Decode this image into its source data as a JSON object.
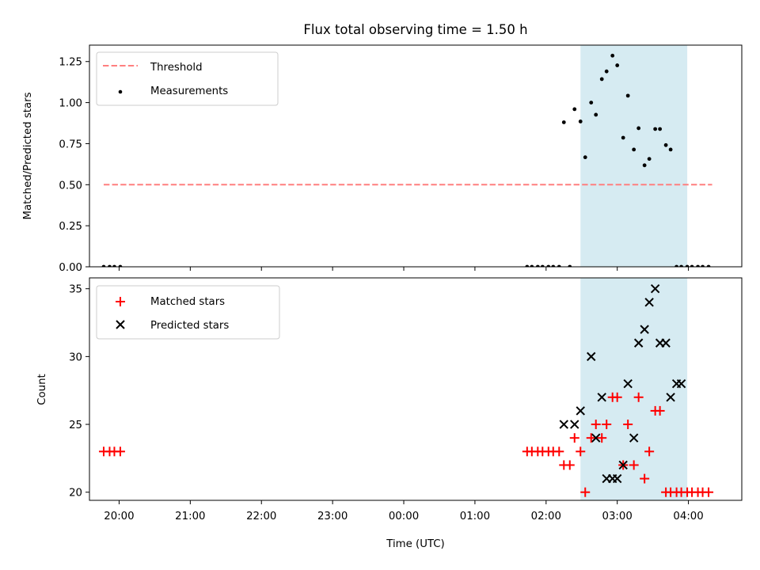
{
  "chart_data": [
    {
      "type": "scatter",
      "title": "Flux total observing time = 1.50 h",
      "xlabel": "",
      "ylabel": "Matched/Predicted stars",
      "ylim": [
        0,
        1.35
      ],
      "yticks": [
        "0.00",
        "0.25",
        "0.50",
        "0.75",
        "1.00",
        "1.25"
      ],
      "xlim": [
        "19:35",
        "04:45"
      ],
      "xticks": [
        "20:00",
        "21:00",
        "22:00",
        "23:00",
        "00:00",
        "01:00",
        "02:00",
        "03:00",
        "04:00"
      ],
      "shaded_span": {
        "start": "02:29",
        "end": "03:59",
        "color": "#add8e6"
      },
      "legend_position": "upper left",
      "series": [
        {
          "name": "Threshold",
          "kind": "dashed-line",
          "color": "#ff7f7f",
          "x": [
            "19:47",
            "04:20"
          ],
          "y": [
            0.5,
            0.5
          ]
        },
        {
          "name": "Measurements",
          "kind": "points",
          "color": "#000000",
          "x": [
            "19:47",
            "19:52",
            "19:56",
            "20:01",
            "01:44",
            "01:48",
            "01:53",
            "01:57",
            "02:02",
            "02:06",
            "02:11",
            "02:15",
            "02:20",
            "02:24",
            "02:29",
            "02:33",
            "02:38",
            "02:42",
            "02:47",
            "02:51",
            "02:56",
            "03:00",
            "03:05",
            "03:09",
            "03:14",
            "03:18",
            "03:23",
            "03:27",
            "03:32",
            "03:36",
            "03:41",
            "03:45",
            "03:50",
            "03:54",
            "03:59",
            "04:03",
            "04:08",
            "04:12",
            "04:17"
          ],
          "y": [
            0,
            0,
            0,
            0,
            0,
            0,
            0,
            0,
            0,
            0,
            0,
            0.88,
            0,
            0.96,
            0.885,
            0.667,
            1.0,
            0.926,
            1.143,
            1.19,
            1.286,
            1.227,
            0.786,
            1.042,
            0.714,
            0.844,
            0.618,
            0.657,
            0.839,
            0.839,
            0.741,
            0.714,
            0,
            0,
            0,
            0,
            0,
            0,
            0
          ]
        }
      ]
    },
    {
      "type": "scatter",
      "title": "",
      "xlabel": "Time (UTC)",
      "ylabel": "Count",
      "ylim": [
        19.4,
        35.8
      ],
      "yticks": [
        "20",
        "25",
        "30",
        "35"
      ],
      "xlim": [
        "19:35",
        "04:45"
      ],
      "xticks": [
        "20:00",
        "21:00",
        "22:00",
        "23:00",
        "00:00",
        "01:00",
        "02:00",
        "03:00",
        "04:00"
      ],
      "shaded_span": {
        "start": "02:29",
        "end": "03:59",
        "color": "#add8e6"
      },
      "legend_position": "upper left",
      "series": [
        {
          "name": "Matched stars",
          "kind": "plus",
          "color": "#ff0000",
          "x": [
            "19:47",
            "19:52",
            "19:56",
            "20:01",
            "01:44",
            "01:48",
            "01:53",
            "01:57",
            "02:02",
            "02:06",
            "02:11",
            "02:15",
            "02:20",
            "02:24",
            "02:29",
            "02:33",
            "02:38",
            "02:42",
            "02:47",
            "02:51",
            "02:56",
            "03:00",
            "03:05",
            "03:09",
            "03:14",
            "03:18",
            "03:23",
            "03:27",
            "03:32",
            "03:36",
            "03:41",
            "03:45",
            "03:50",
            "03:54",
            "03:59",
            "04:03",
            "04:08",
            "04:12",
            "04:17"
          ],
          "y": [
            23,
            23,
            23,
            23,
            23,
            23,
            23,
            23,
            23,
            23,
            23,
            22,
            22,
            24,
            23,
            20,
            24,
            25,
            24,
            25,
            27,
            27,
            22,
            25,
            22,
            27,
            21,
            23,
            26,
            26,
            20,
            20,
            20,
            20,
            20,
            20,
            20,
            20,
            20
          ]
        },
        {
          "name": "Predicted stars",
          "kind": "x",
          "color": "#000000",
          "x": [
            "02:15",
            "02:24",
            "02:29",
            "02:38",
            "02:42",
            "02:47",
            "02:51",
            "02:56",
            "03:00",
            "03:05",
            "03:09",
            "03:14",
            "03:18",
            "03:23",
            "03:27",
            "03:32",
            "03:36",
            "03:41",
            "03:45",
            "03:50",
            "03:54"
          ],
          "y": [
            25,
            25,
            26,
            30,
            24,
            27,
            21,
            21,
            21,
            22,
            28,
            24,
            31,
            32,
            34,
            35,
            31,
            31,
            27,
            28,
            28
          ]
        }
      ]
    }
  ]
}
